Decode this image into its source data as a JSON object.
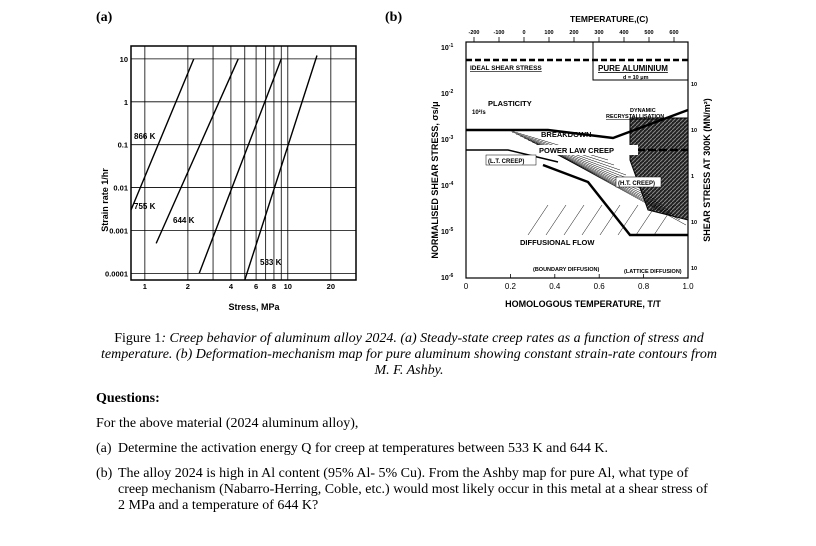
{
  "figure": {
    "panel_a_label": "(a)",
    "panel_b_label": "(b)",
    "chart_a": {
      "type": "line",
      "xlabel": "Stress, MPa",
      "ylabel": "Strain rate 1/hr",
      "x_ticks": [
        "1",
        "2",
        "4",
        "6",
        "8",
        "10",
        "20"
      ],
      "y_ticks": [
        "10",
        "1",
        "0.1",
        "0.01",
        "0.001",
        "0.0001"
      ],
      "series_labels": [
        "866 K",
        "755 K",
        "644 K",
        "533 K"
      ]
    },
    "chart_b": {
      "title_top": "TEMPERATURE,(C)",
      "top_ticks": [
        "-200",
        "-100",
        "0",
        "100",
        "200",
        "300",
        "400",
        "500",
        "600"
      ],
      "xlabel": "HOMOLOGOUS TEMPERATURE, T/T",
      "x_ticks": [
        "0",
        "0.2",
        "0.4",
        "0.6",
        "0.8",
        "1.0"
      ],
      "left_ylabel": "NORMALISED SHEAR STRESS, σs/μ",
      "left_ticks": [
        "10",
        "10",
        "10",
        "10",
        "10",
        "10"
      ],
      "left_exps": [
        "-1",
        "-2",
        "-3",
        "-4",
        "-5",
        "-6"
      ],
      "right_ylabel": "SHEAR STRESS AT 300K (MN/m²)",
      "right_ticks": [
        "10",
        "10",
        "1",
        "10",
        "10"
      ],
      "box_label_1": "PURE ALUMINIUM",
      "box_label_2": "d = 10 μm",
      "regions": {
        "ideal": "IDEAL SHEAR STRESS",
        "plasticity": "PLASTICITY",
        "breakdown": "BREAKDOWN",
        "power_law": "POWER LAW CREEP",
        "lt_creep": "(L.T. CREEP)",
        "ht_creep": "(H.T. CREEP)",
        "dynamic": "DYNAMIC",
        "recryst": "RECRYSTALLISATION",
        "diffusional": "DIFFUSIONAL FLOW",
        "boundary": "(BOUNDARY DIFFUSION)",
        "lattice": "(LATTICE DIFFUSION)",
        "pct": "10²/s"
      }
    }
  },
  "caption": {
    "fig": "Figure 1",
    "text": ": Creep behavior of aluminum alloy 2024. (a) Steady-state creep rates as a function of stress and temperature. (b) Deformation-mechanism map for pure aluminum showing constant strain-rate contours from M. F. Ashby."
  },
  "questions": {
    "heading": "Questions:",
    "intro": "For the above material (2024 aluminum alloy),",
    "a_label": "(a)",
    "a_text": "Determine the activation energy Q for creep at temperatures between 533 K and 644 K.",
    "b_label": "(b)",
    "b_text": "The alloy 2024 is high in Al content (95% Al- 5% Cu). From the Ashby map for pure Al, what type of creep mechanism (Nabarro-Herring, Coble, etc.) would most likely occur in this metal at a shear stress of 2 MPa and a temperature of 644 K?"
  }
}
